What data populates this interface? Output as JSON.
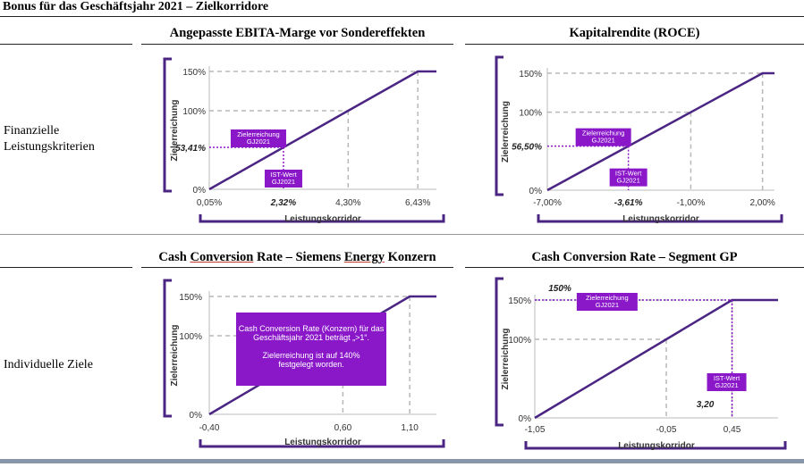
{
  "page_title": "Bonus für das Geschäftsjahr 2021 – Zielkorridore",
  "row_labels": {
    "financial_line1": "Finanzielle",
    "financial_line2": "Leistungskriterien",
    "individual": "Individuelle Ziele"
  },
  "panels": {
    "ebita": {
      "title": "Angepasste EBITA-Marge vor Sondereffekten"
    },
    "roce": {
      "title": "Kapitalrendite (ROCE)"
    },
    "ccr_group": {
      "title_a": "Cash ",
      "title_b": "Conversion",
      "title_c": " Rate – Siemens ",
      "title_d": "Energy",
      "title_e": " Konzern"
    },
    "ccr_gp": {
      "title": "Cash Conversion Rate – Segment GP"
    }
  },
  "colors": {
    "accent": "#4b2583",
    "label_box": "#8a18c9",
    "guide": "#b8b8b8",
    "bottom_bar": "#8796a8"
  },
  "chart_data": [
    {
      "type": "line",
      "title": "Angepasste EBITA-Marge vor Sondereffekten",
      "xlabel": "Leistungskorridor",
      "ylabel": "Zielerreichung",
      "x_ticks": [
        "0,05%",
        "4,30%",
        "6,43%"
      ],
      "y_ticks": [
        "0%",
        "100%",
        "150%"
      ],
      "x": [
        0.05,
        4.3,
        6.43,
        7.0
      ],
      "y": [
        0,
        100,
        150,
        150
      ],
      "xlim": [
        0.05,
        7.0
      ],
      "ylim": [
        0,
        150
      ],
      "ist_wert": 2.32,
      "ist_wert_label": "2,32%",
      "zielerreichung": 53.41,
      "zielerreichung_label": "53,41%",
      "annotation_ziel": [
        "Zielerreichung",
        "GJ2021"
      ],
      "annotation_ist": [
        "IST-Wert",
        "GJ2021"
      ]
    },
    {
      "type": "line",
      "title": "Kapitalrendite (ROCE)",
      "xlabel": "Leistungskorridor",
      "ylabel": "Zielerreichung",
      "x_ticks": [
        "-7,00%",
        "-1,00%",
        "2,00%"
      ],
      "y_ticks": [
        "0%",
        "100%",
        "150%"
      ],
      "x": [
        -7.0,
        -1.0,
        2.0,
        2.5
      ],
      "y": [
        0,
        100,
        150,
        150
      ],
      "xlim": [
        -7.0,
        2.5
      ],
      "ylim": [
        0,
        150
      ],
      "ist_wert": -3.61,
      "ist_wert_label": "-3,61%",
      "zielerreichung": 56.5,
      "zielerreichung_label": "56,50%",
      "annotation_ziel": [
        "Zielerreichung",
        "GJ2021"
      ],
      "annotation_ist": [
        "IST-Wert",
        "GJ2021"
      ]
    },
    {
      "type": "line",
      "title": "Cash Conversion Rate – Siemens Energy Konzern",
      "xlabel": "Leistungskorridor",
      "ylabel": "Zielerreichung",
      "x_ticks": [
        "-0,40",
        "0,60",
        "1,10"
      ],
      "y_ticks": [
        "0%",
        "100%",
        "150%"
      ],
      "x": [
        -0.4,
        0.6,
        1.1,
        1.3
      ],
      "y": [
        0,
        100,
        150,
        150
      ],
      "xlim": [
        -0.4,
        1.3
      ],
      "ylim": [
        0,
        150
      ],
      "note_lines": [
        "Cash Conversion Rate (Konzern) für das",
        "Geschäftsjahr 2021 beträgt „>1“.",
        "",
        "Zielerreichung ist auf 140%",
        "festgelegt worden."
      ]
    },
    {
      "type": "line",
      "title": "Cash Conversion Rate – Segment GP",
      "xlabel": "Leistungskorridor",
      "ylabel": "Zielerreichung",
      "x_ticks": [
        "-1,05",
        "-0,05",
        "0,45"
      ],
      "y_ticks": [
        "0%",
        "100%",
        "150%"
      ],
      "x": [
        -1.05,
        -0.05,
        0.45,
        0.8
      ],
      "y": [
        0,
        100,
        150,
        150
      ],
      "xlim": [
        -1.05,
        0.8
      ],
      "ylim": [
        0,
        150
      ],
      "ist_wert": 3.2,
      "ist_wert_label": "3,20",
      "zielerreichung": 150,
      "zielerreichung_label": "150%",
      "annotation_ziel": [
        "Zielerreichung",
        "GJ2021"
      ],
      "annotation_ist": [
        "IST-Wert",
        "GJ2021"
      ]
    }
  ]
}
